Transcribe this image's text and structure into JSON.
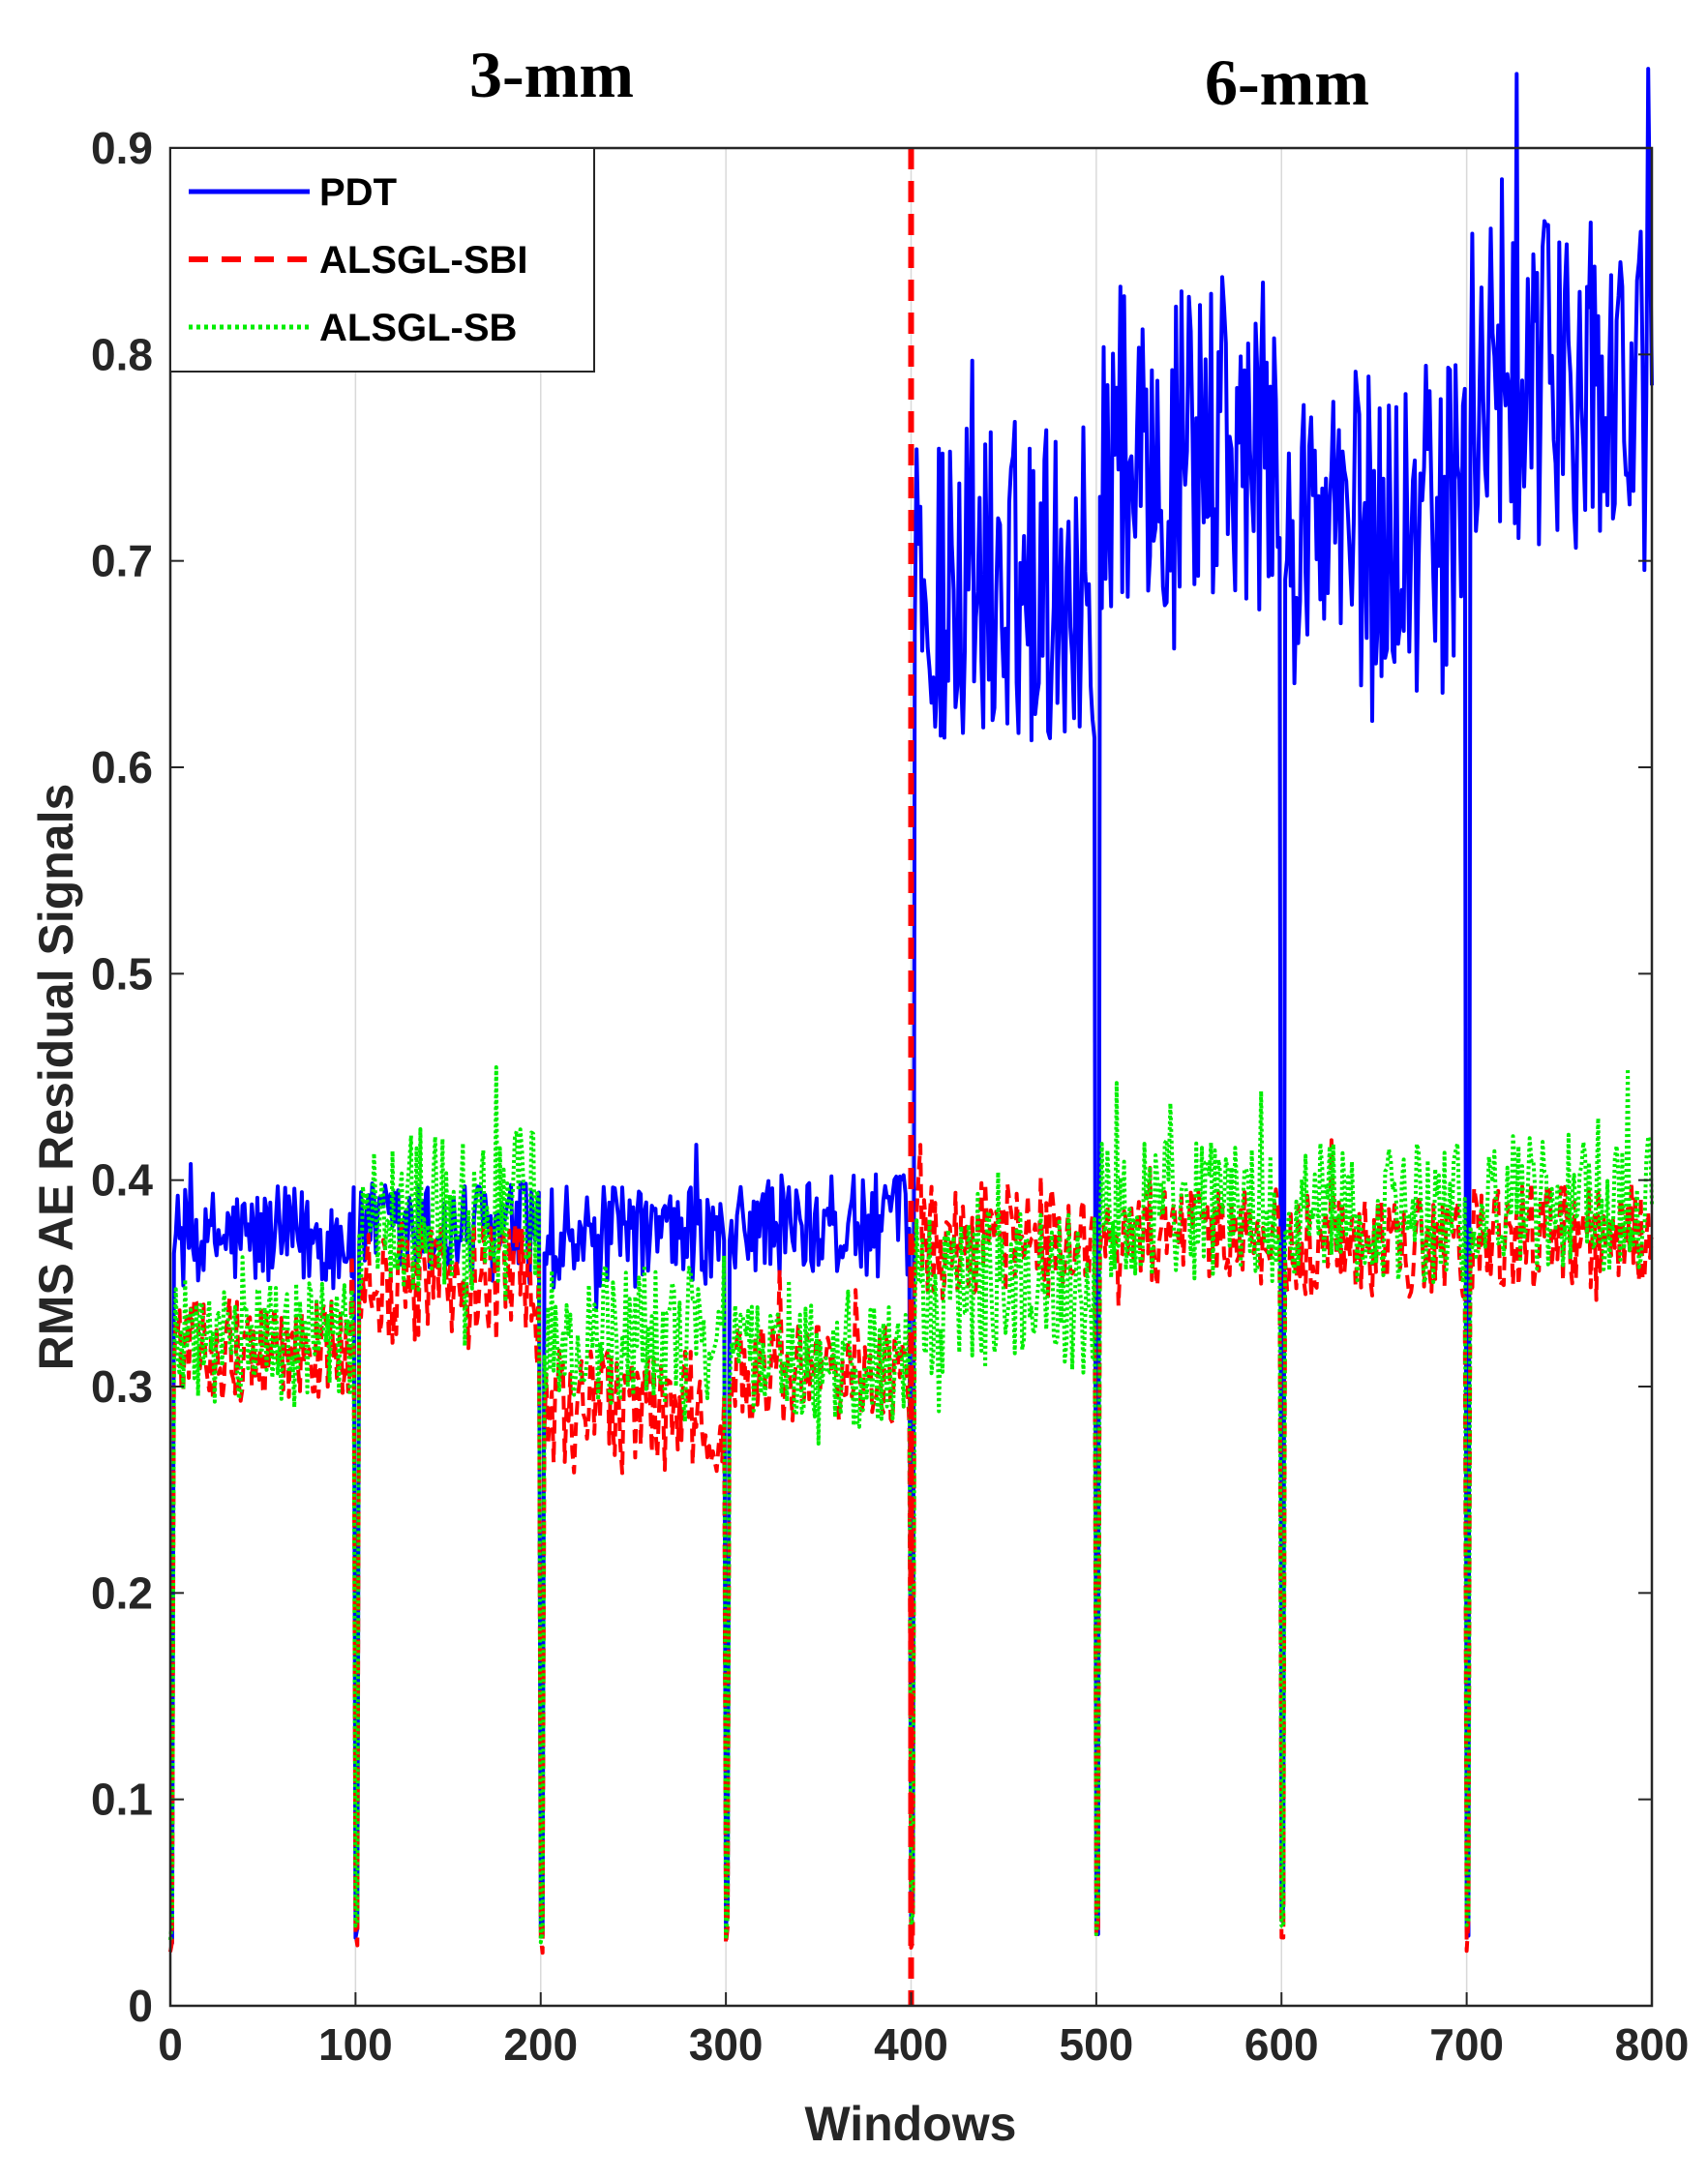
{
  "chart_data": {
    "type": "line",
    "title": "",
    "region_labels": [
      "3-mm",
      "6-mm"
    ],
    "xlabel": "Windows",
    "ylabel": "RMS AE Residual Signals",
    "xlim": [
      0,
      800
    ],
    "ylim": [
      0,
      0.9
    ],
    "x_ticks": [
      "0",
      "100",
      "200",
      "300",
      "400",
      "500",
      "600",
      "700",
      "800"
    ],
    "y_ticks": [
      "0",
      "0.1",
      "0.2",
      "0.3",
      "0.4",
      "0.5",
      "0.6",
      "0.7",
      "0.8",
      "0.9"
    ],
    "grid": "vertical gridlines at every 100 windows",
    "divider": {
      "x": 400,
      "style": "red dashed",
      "meaning": "boundary between 3-mm and 6-mm"
    },
    "legend_position": "top-left",
    "segment_length": 100,
    "series": [
      {
        "name": "PDT",
        "color": "#0000ff",
        "style": "solid",
        "segment_levels": [
          0.372,
          0.375,
          0.372,
          0.378,
          0.69,
          0.755,
          0.715,
          0.785
        ],
        "segment_noise": [
          0.025,
          0.025,
          0.025,
          0.025,
          0.08,
          0.08,
          0.08,
          0.08
        ],
        "dip_minimum": 0.03
      },
      {
        "name": "ALSGL-SBI",
        "color": "#ff0000",
        "style": "dashed",
        "segment_levels": [
          0.318,
          0.35,
          0.288,
          0.305,
          0.372,
          0.372,
          0.368,
          0.372
        ],
        "segment_noise": [
          0.025,
          0.03,
          0.03,
          0.025,
          0.03,
          0.025,
          0.025,
          0.025
        ],
        "dip_minimum": 0.025
      },
      {
        "name": "ALSGL-SB",
        "color": "#00ee00",
        "style": "dotted",
        "segment_levels": [
          0.32,
          0.385,
          0.325,
          0.31,
          0.345,
          0.385,
          0.385,
          0.388
        ],
        "segment_noise": [
          0.03,
          0.04,
          0.035,
          0.03,
          0.04,
          0.035,
          0.035,
          0.035
        ],
        "dip_minimum": 0.03
      }
    ]
  }
}
